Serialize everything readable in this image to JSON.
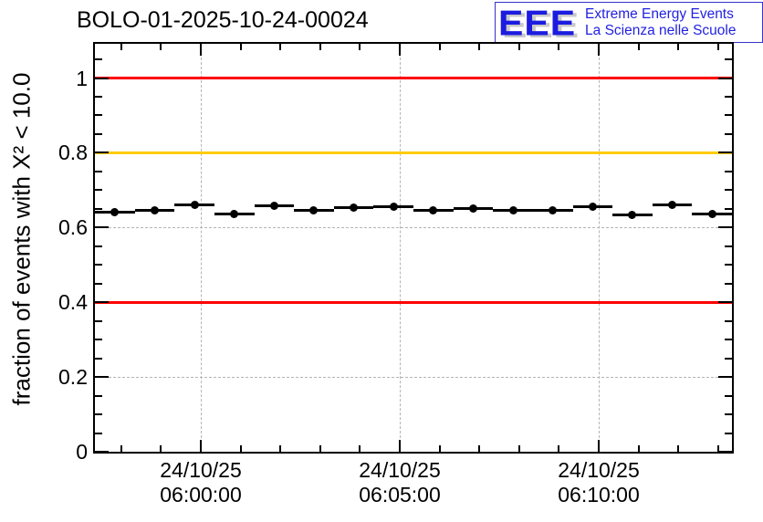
{
  "header": {
    "title": "BOLO-01-2025-10-24-00024",
    "logo": {
      "acronym": "EEE",
      "line1": "Extreme Energy Events",
      "line2": "La Scienza nelle Scuole",
      "text_color": "#2222e0",
      "shadow_color": "#c9c9c9",
      "border_color": "#3333cc"
    }
  },
  "chart_data": {
    "type": "scatter",
    "title": "BOLO-01-2025-10-24-00024",
    "xlabel": "",
    "ylabel": "fraction of events with X² < 10.0",
    "ylim": [
      0,
      1.09
    ],
    "grid": "dashed gray on major ticks, both axes",
    "legend": "none",
    "x_tick_labels": [
      [
        "24/10/25",
        "06:00:00"
      ],
      [
        "24/10/25",
        "06:05:00"
      ],
      [
        "24/10/25",
        "06:10:00"
      ]
    ],
    "y_ticks": [
      0,
      0.2,
      0.4,
      0.6,
      0.8,
      1
    ],
    "y_tick_labels": [
      "0",
      "0.2",
      "0.4",
      "0.6",
      "0.8",
      "1"
    ],
    "series": [
      {
        "name": "fraction of events with chi2 < 10 per ~1-minute bin",
        "marker": "black filled circle with horizontal bin-width bar",
        "x_bin_center_times": [
          "05:57:50",
          "05:58:50",
          "05:59:50",
          "06:00:50",
          "06:01:50",
          "06:02:50",
          "06:03:50",
          "06:04:50",
          "06:05:50",
          "06:06:50",
          "06:07:50",
          "06:08:50",
          "06:09:50",
          "06:10:50",
          "06:11:50",
          "06:12:50"
        ],
        "values": [
          0.642,
          0.645,
          0.661,
          0.636,
          0.659,
          0.645,
          0.653,
          0.655,
          0.646,
          0.651,
          0.645,
          0.645,
          0.655,
          0.634,
          0.661,
          0.636
        ]
      }
    ],
    "reference_lines": [
      {
        "value": 1.0,
        "color": "#ff0000"
      },
      {
        "value": 0.8,
        "color": "#ffcc00"
      },
      {
        "value": 0.4,
        "color": "#ff0000"
      }
    ],
    "colors": {
      "marker": "#000000",
      "grid": "#b4b4b4",
      "frame": "#000000"
    }
  }
}
